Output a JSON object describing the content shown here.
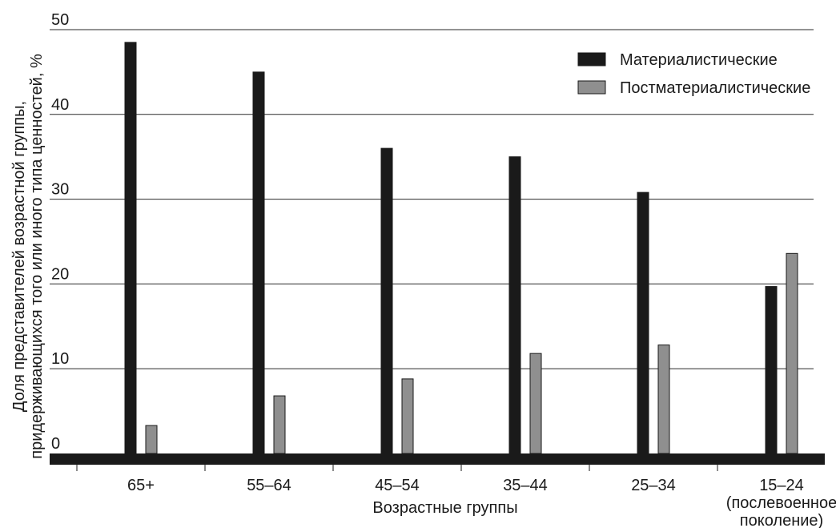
{
  "chart_data": {
    "type": "bar",
    "title": "",
    "xlabel": "Возрастные группы",
    "ylabel_lines": [
      "Доля представителей возрастной группы,",
      "придерживающихся того или иного типа ценностей, %"
    ],
    "ylim": [
      0,
      50
    ],
    "yticks": [
      0,
      10,
      20,
      30,
      40,
      50
    ],
    "grid": true,
    "legend_position": "top-right",
    "categories": [
      [
        "65+"
      ],
      [
        "55–64"
      ],
      [
        "45–54"
      ],
      [
        "35–44"
      ],
      [
        "25–34"
      ],
      [
        "15–24",
        "(послевоенное",
        "поколение)"
      ]
    ],
    "series": [
      {
        "name": "Материалистические",
        "color": "#1a1a1a",
        "values": [
          48.5,
          45,
          36,
          35,
          30.8,
          19.7
        ]
      },
      {
        "name": "Постматериалистические",
        "color": "#8f8f8f",
        "values": [
          3.3,
          6.8,
          8.8,
          11.8,
          12.8,
          23.6
        ]
      }
    ]
  }
}
